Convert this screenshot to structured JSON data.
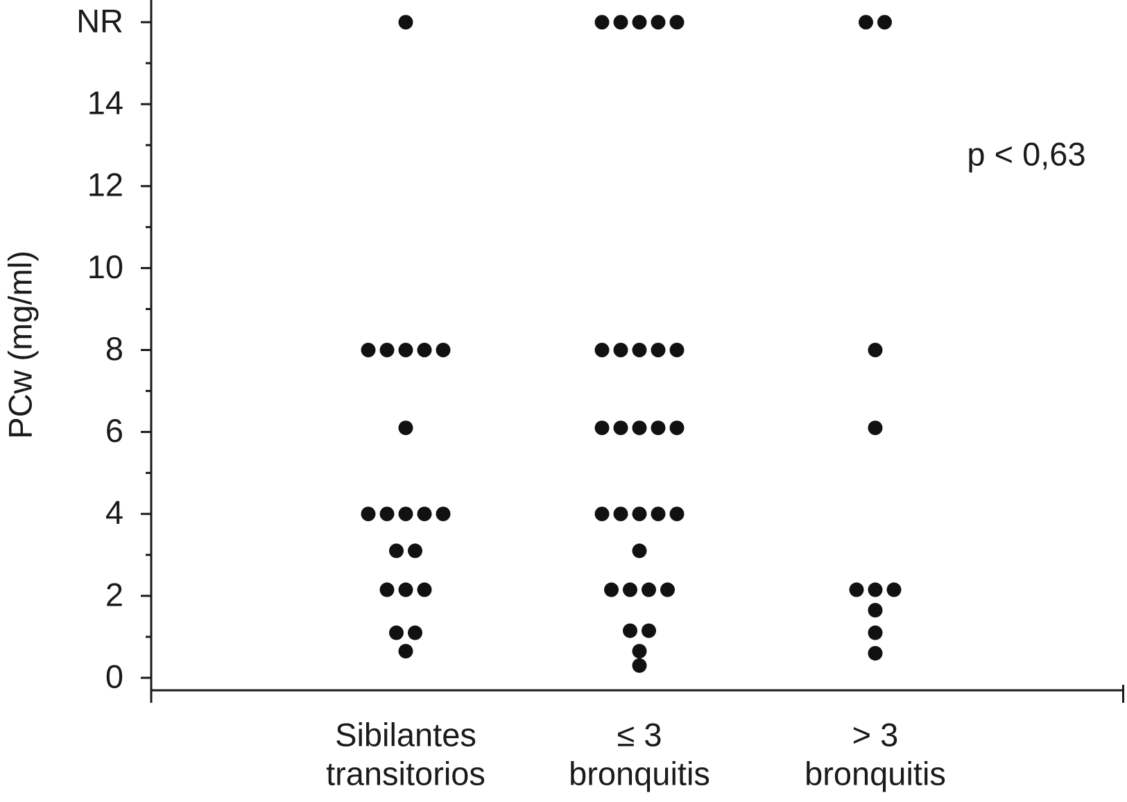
{
  "chart_data": {
    "type": "dot",
    "ylabel": "PCw (mg/ml)",
    "annotation": "p < 0,63",
    "categories": [
      [
        "Sibilantes",
        "transitorios"
      ],
      [
        "≤ 3",
        "bronquitis"
      ],
      [
        "> 3",
        "bronquitis"
      ]
    ],
    "values": [
      [
        16,
        8,
        8,
        8,
        8,
        8,
        6.1,
        4,
        4,
        4,
        4,
        4,
        3.1,
        3.1,
        2.15,
        2.15,
        2.15,
        1.1,
        1.1,
        0.65
      ],
      [
        16,
        16,
        16,
        16,
        16,
        8,
        8,
        8,
        8,
        8,
        6.1,
        6.1,
        6.1,
        6.1,
        6.1,
        4,
        4,
        4,
        4,
        4,
        3.1,
        2.15,
        2.15,
        2.15,
        2.15,
        1.15,
        1.15,
        0.65,
        0.3
      ],
      [
        16,
        16,
        8,
        6.1,
        2.15,
        2.15,
        2.15,
        1.65,
        1.1,
        0.6
      ]
    ],
    "color": "#111111",
    "ylim": [
      0,
      16
    ],
    "yticks": [
      0,
      2,
      4,
      6,
      8,
      10,
      12,
      14,
      {
        "value": 16,
        "label": "NR"
      }
    ]
  }
}
